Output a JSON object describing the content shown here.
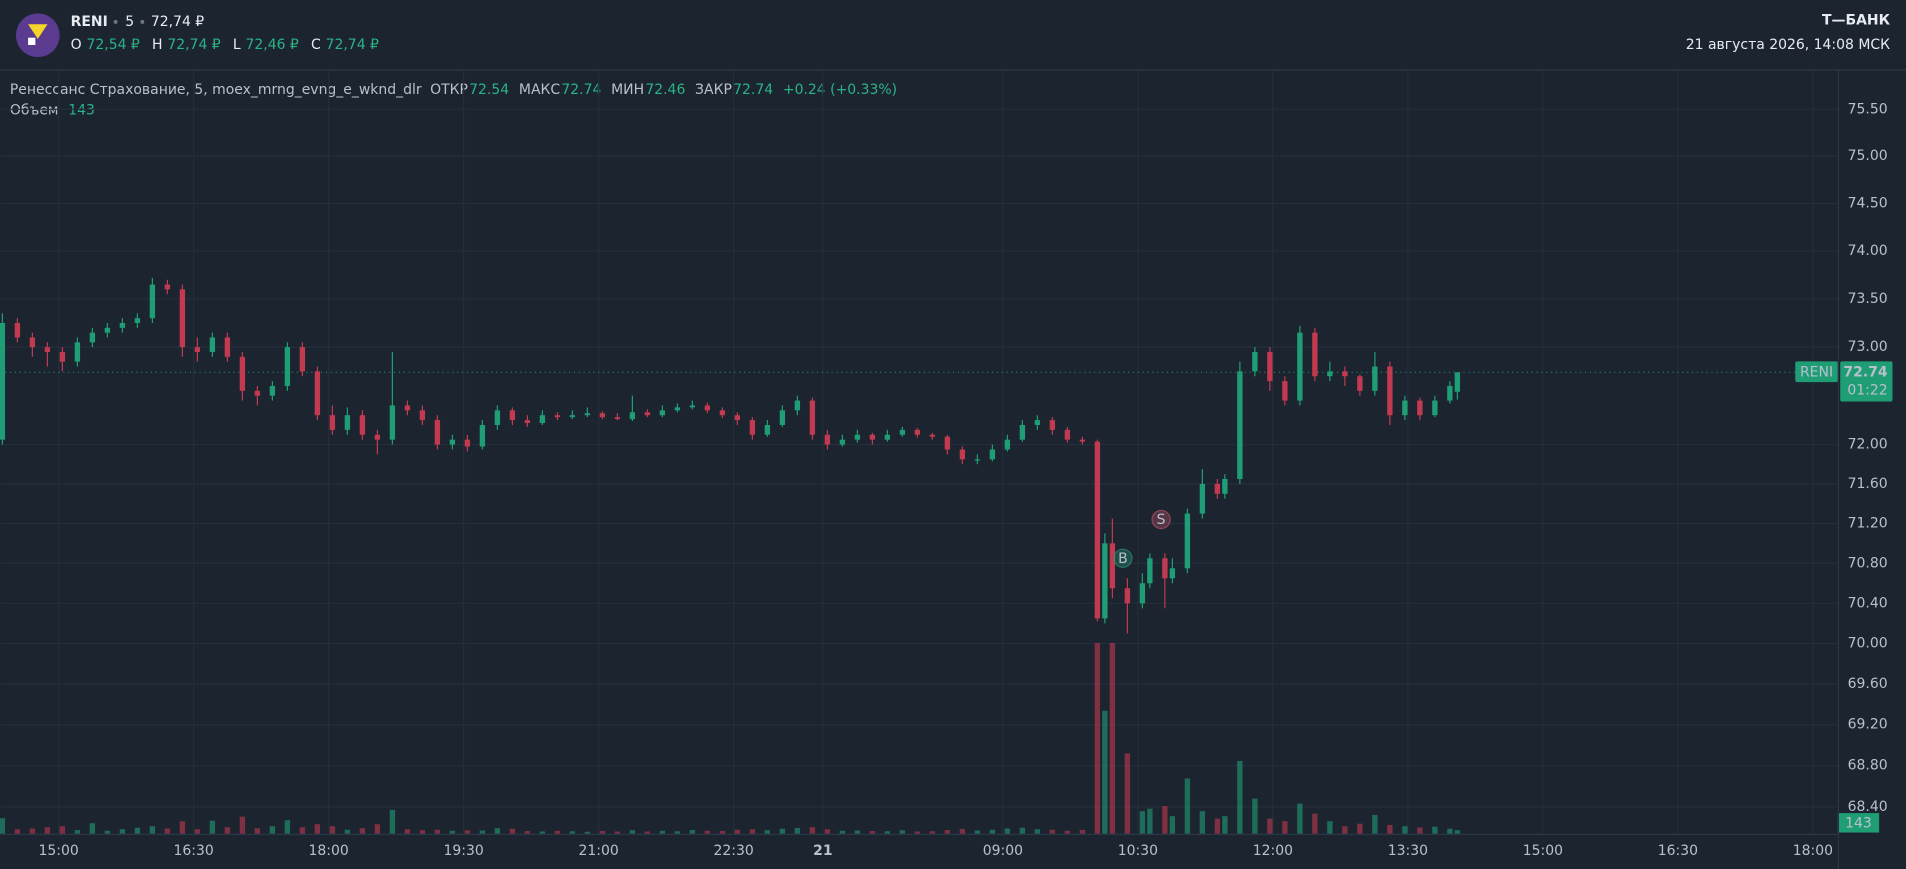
{
  "header": {
    "ticker": "RENI",
    "interval": "5",
    "price": "72,74 ₽",
    "ohlc": [
      {
        "key": "O",
        "value": "72,54 ₽"
      },
      {
        "key": "H",
        "value": "72,74 ₽"
      },
      {
        "key": "L",
        "value": "72,46 ₽"
      },
      {
        "key": "C",
        "value": "72,74 ₽"
      }
    ],
    "brand": "Т—БАНК",
    "datetime": "21 августа 2026, 14:08 МСК"
  },
  "chart_data": {
    "type": "candlestick",
    "legend": {
      "name": "Ренессанс Страхование, 5, moex_mrng_evng_e_wknd_dlr",
      "fields": [
        {
          "key": "ОТКР",
          "value": "72.54"
        },
        {
          "key": "МАКС",
          "value": "72.74"
        },
        {
          "key": "МИН",
          "value": "72.46"
        },
        {
          "key": "ЗАКР",
          "value": "72.74"
        }
      ],
      "change": "+0.24 (+0.33%)",
      "volume_key": "Объем",
      "volume_value": "143"
    },
    "up_color": "#1f9e76",
    "down_color": "#c23a50",
    "log_scale": true,
    "grid": true,
    "xlim": [
      -0.3,
      244.4
    ],
    "ylim": [
      68.14,
      75.89
    ],
    "xticks": [
      {
        "value": 7.5,
        "label": "15:00"
      },
      {
        "value": 25.5,
        "label": "16:30"
      },
      {
        "value": 43.5,
        "label": "18:00"
      },
      {
        "value": 61.5,
        "label": "19:30"
      },
      {
        "value": 79.5,
        "label": "21:00"
      },
      {
        "value": 97.5,
        "label": "22:30"
      },
      {
        "value": 109.4,
        "label": "21",
        "bold": true
      },
      {
        "value": 133.4,
        "label": "09:00"
      },
      {
        "value": 151.4,
        "label": "10:30"
      },
      {
        "value": 169.4,
        "label": "12:00"
      },
      {
        "value": 187.4,
        "label": "13:30"
      },
      {
        "value": 205.4,
        "label": "15:00"
      },
      {
        "value": 223.4,
        "label": "16:30"
      },
      {
        "value": 241.4,
        "label": "18:00"
      }
    ],
    "yticks": [
      {
        "value": 75.5,
        "label": "75.50"
      },
      {
        "value": 75,
        "label": "75.00"
      },
      {
        "value": 74.5,
        "label": "74.50"
      },
      {
        "value": 74,
        "label": "74.00"
      },
      {
        "value": 73.5,
        "label": "73.50"
      },
      {
        "value": 73,
        "label": "73.00"
      },
      {
        "value": 72,
        "label": "72.00"
      },
      {
        "value": 71.6,
        "label": "71.60"
      },
      {
        "value": 71.2,
        "label": "71.20"
      },
      {
        "value": 70.8,
        "label": "70.80"
      },
      {
        "value": 70.4,
        "label": "70.40"
      },
      {
        "value": 70,
        "label": "70.00"
      },
      {
        "value": 69.6,
        "label": "69.60"
      },
      {
        "value": 69.2,
        "label": "69.20"
      },
      {
        "value": 68.8,
        "label": "68.80"
      },
      {
        "value": 68.4,
        "label": "68.40"
      }
    ],
    "x": [
      0,
      2,
      4,
      6,
      8,
      10,
      12,
      14,
      16,
      18,
      20,
      22,
      24,
      26,
      28,
      30,
      32,
      34,
      36,
      38,
      40,
      42,
      44,
      46,
      48,
      50,
      52,
      54,
      56,
      58,
      60,
      62,
      64,
      66,
      68,
      70,
      72,
      74,
      76,
      78,
      80,
      82,
      84,
      86,
      88,
      90,
      92,
      94,
      96,
      98,
      100,
      102,
      104,
      106,
      108,
      110,
      112,
      114,
      116,
      118,
      120,
      122,
      124,
      126,
      128,
      130,
      132,
      134,
      136,
      138,
      140,
      142,
      144,
      146,
      147,
      148,
      150,
      152,
      153,
      155,
      156,
      158,
      160,
      162,
      163,
      165,
      167,
      169,
      171,
      173,
      175,
      177,
      179,
      181,
      183,
      185,
      187,
      189,
      191,
      193,
      194
    ],
    "open": [
      72.05,
      73.25,
      73.1,
      73.0,
      72.95,
      72.85,
      73.05,
      73.15,
      73.2,
      73.25,
      73.3,
      73.65,
      73.6,
      73.0,
      72.95,
      73.1,
      72.9,
      72.55,
      72.5,
      72.6,
      73.0,
      72.75,
      72.3,
      72.15,
      72.3,
      72.1,
      72.05,
      72.4,
      72.35,
      72.25,
      72.0,
      72.05,
      71.98,
      72.2,
      72.35,
      72.25,
      72.22,
      72.3,
      72.28,
      72.3,
      72.32,
      72.28,
      72.26,
      72.33,
      72.3,
      72.35,
      72.38,
      72.4,
      72.35,
      72.3,
      72.25,
      72.1,
      72.2,
      72.35,
      72.45,
      72.1,
      72.0,
      72.05,
      72.1,
      72.05,
      72.1,
      72.15,
      72.1,
      72.08,
      71.95,
      71.85,
      71.85,
      71.95,
      72.05,
      72.2,
      72.25,
      72.15,
      72.05,
      72.03,
      70.25,
      71.0,
      70.55,
      70.4,
      70.6,
      70.85,
      70.65,
      70.75,
      71.3,
      71.6,
      71.5,
      71.65,
      72.75,
      72.95,
      72.65,
      72.45,
      73.15,
      72.7,
      72.75,
      72.7,
      72.55,
      72.8,
      72.3,
      72.45,
      72.3,
      72.45,
      72.54
    ],
    "high": [
      73.35,
      73.3,
      73.15,
      73.05,
      73.0,
      73.1,
      73.2,
      73.25,
      73.3,
      73.35,
      73.72,
      73.7,
      73.65,
      73.1,
      73.15,
      73.15,
      72.95,
      72.6,
      72.65,
      73.05,
      73.05,
      72.8,
      72.4,
      72.38,
      72.35,
      72.15,
      72.95,
      72.45,
      72.4,
      72.3,
      72.1,
      72.1,
      72.25,
      72.4,
      72.38,
      72.3,
      72.35,
      72.33,
      72.35,
      72.38,
      72.34,
      72.32,
      72.5,
      72.36,
      72.4,
      72.42,
      72.45,
      72.43,
      72.38,
      72.33,
      72.28,
      72.25,
      72.4,
      72.5,
      72.48,
      72.15,
      72.1,
      72.15,
      72.12,
      72.15,
      72.18,
      72.17,
      72.12,
      72.1,
      71.98,
      71.9,
      72.0,
      72.1,
      72.25,
      72.3,
      72.28,
      72.18,
      72.08,
      72.05,
      71.1,
      71.25,
      70.65,
      70.7,
      70.9,
      70.9,
      70.85,
      71.35,
      71.75,
      71.65,
      71.7,
      72.85,
      73.0,
      73.0,
      72.7,
      73.22,
      73.2,
      72.85,
      72.8,
      72.72,
      72.95,
      72.85,
      72.5,
      72.48,
      72.5,
      72.65,
      72.74
    ],
    "low": [
      72.0,
      73.05,
      72.9,
      72.8,
      72.75,
      72.8,
      73.0,
      73.1,
      73.15,
      73.2,
      73.25,
      73.55,
      72.9,
      72.85,
      72.9,
      72.85,
      72.45,
      72.4,
      72.45,
      72.55,
      72.7,
      72.25,
      72.1,
      72.1,
      72.05,
      71.9,
      72.0,
      72.3,
      72.2,
      71.95,
      71.95,
      71.93,
      71.95,
      72.15,
      72.2,
      72.18,
      72.2,
      72.25,
      72.26,
      72.28,
      72.26,
      72.25,
      72.24,
      72.28,
      72.28,
      72.33,
      72.36,
      72.32,
      72.27,
      72.2,
      72.05,
      72.08,
      72.18,
      72.3,
      72.05,
      71.95,
      71.98,
      72.02,
      72.0,
      72.03,
      72.08,
      72.07,
      72.05,
      71.9,
      71.8,
      71.8,
      71.83,
      71.93,
      72.03,
      72.15,
      72.1,
      72.02,
      72.0,
      70.22,
      70.2,
      70.45,
      70.1,
      70.35,
      70.55,
      70.35,
      70.6,
      70.7,
      71.25,
      71.45,
      71.45,
      71.6,
      72.7,
      72.55,
      72.4,
      72.4,
      72.65,
      72.65,
      72.6,
      72.5,
      72.5,
      72.2,
      72.25,
      72.25,
      72.28,
      72.42,
      72.46
    ],
    "close": [
      73.25,
      73.1,
      73.0,
      72.95,
      72.85,
      73.05,
      73.15,
      73.2,
      73.25,
      73.3,
      73.65,
      73.6,
      73.0,
      72.95,
      73.1,
      72.9,
      72.55,
      72.5,
      72.6,
      73.0,
      72.75,
      72.3,
      72.15,
      72.3,
      72.1,
      72.05,
      72.4,
      72.35,
      72.25,
      72.0,
      72.05,
      71.98,
      72.2,
      72.35,
      72.25,
      72.22,
      72.3,
      72.28,
      72.3,
      72.32,
      72.28,
      72.26,
      72.33,
      72.3,
      72.35,
      72.38,
      72.4,
      72.35,
      72.3,
      72.25,
      72.1,
      72.2,
      72.35,
      72.45,
      72.1,
      72.0,
      72.05,
      72.1,
      72.05,
      72.1,
      72.15,
      72.1,
      72.08,
      71.95,
      71.85,
      71.85,
      71.95,
      72.05,
      72.2,
      72.25,
      72.15,
      72.05,
      72.03,
      70.25,
      71.0,
      70.55,
      70.4,
      70.6,
      70.85,
      70.65,
      70.75,
      71.3,
      71.6,
      71.5,
      71.65,
      72.75,
      72.95,
      72.65,
      72.45,
      73.15,
      72.7,
      72.75,
      72.7,
      72.55,
      72.8,
      72.3,
      72.45,
      72.3,
      72.45,
      72.6,
      72.74
    ],
    "volume": [
      620,
      180,
      210,
      260,
      300,
      150,
      420,
      120,
      180,
      240,
      300,
      210,
      500,
      180,
      520,
      260,
      680,
      220,
      300,
      540,
      260,
      380,
      300,
      160,
      220,
      380,
      950,
      180,
      140,
      160,
      120,
      140,
      130,
      220,
      200,
      110,
      90,
      120,
      100,
      80,
      110,
      90,
      140,
      90,
      120,
      100,
      150,
      120,
      110,
      160,
      180,
      140,
      200,
      230,
      260,
      180,
      120,
      130,
      110,
      100,
      140,
      90,
      100,
      150,
      190,
      130,
      160,
      210,
      240,
      180,
      160,
      120,
      150,
      7600,
      4900,
      7600,
      3200,
      900,
      1000,
      1100,
      700,
      2200,
      900,
      600,
      700,
      2900,
      1400,
      600,
      500,
      1200,
      800,
      500,
      300,
      400,
      750,
      350,
      300,
      250,
      280,
      200,
      143
    ],
    "trades": [
      {
        "label": "B",
        "x": 149.4,
        "price": 70.85,
        "color": "#2a9d78"
      },
      {
        "label": "S",
        "x": 154.5,
        "price": 71.24,
        "color": "#c4566a"
      }
    ],
    "last_price": 72.74,
    "last_price_label": "RENI",
    "countdown": "01:22",
    "volume_badge": 143
  }
}
